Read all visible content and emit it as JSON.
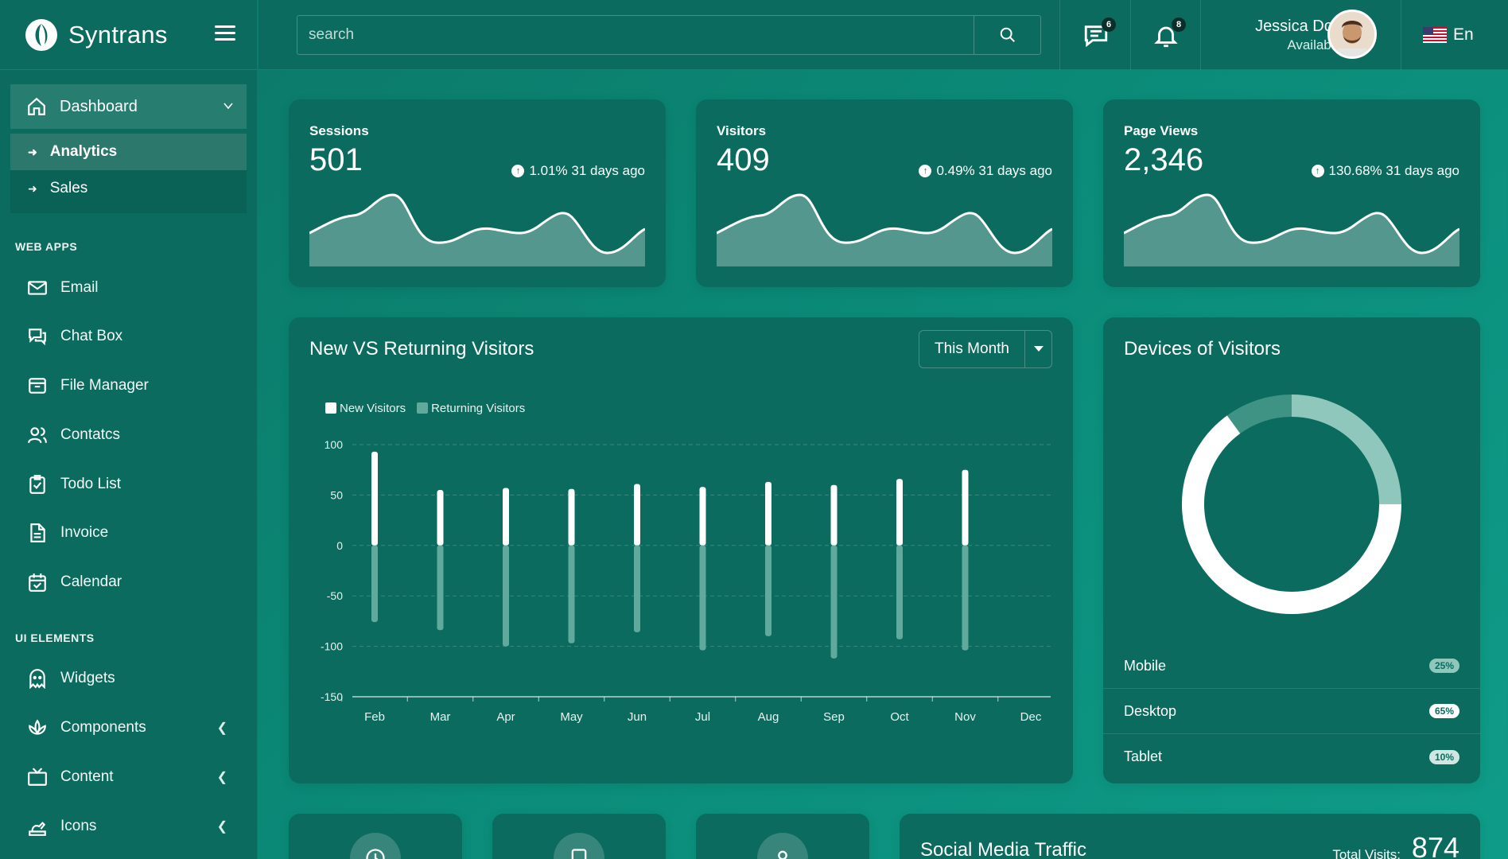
{
  "brand": {
    "name": "Syntrans"
  },
  "search": {
    "placeholder": "search"
  },
  "header": {
    "messages_count": "6",
    "notifications_count": "8",
    "user_name": "Jessica Doe",
    "user_status": "Available",
    "language": "En"
  },
  "sidebar": {
    "dashboard": "Dashboard",
    "sub_items": [
      "Analytics",
      "Sales"
    ],
    "section_web_apps": "WEB APPS",
    "web_apps": [
      "Email",
      "Chat Box",
      "File Manager",
      "Contatcs",
      "Todo List",
      "Invoice",
      "Calendar"
    ],
    "section_ui_elements": "UI ELEMENTS",
    "ui_elements": [
      "Widgets",
      "Components",
      "Content",
      "Icons"
    ]
  },
  "stats": [
    {
      "title": "Sessions",
      "value": "501",
      "change": "1.01% 31 days ago"
    },
    {
      "title": "Visitors",
      "value": "409",
      "change": "0.49% 31 days ago"
    },
    {
      "title": "Page Views",
      "value": "2,346",
      "change": "130.68% 31 days ago"
    }
  ],
  "visitors_chart": {
    "title": "New VS Returning Visitors",
    "period": "This Month"
  },
  "devices": {
    "title": "Devices of Visitors",
    "rows": [
      {
        "label": "Mobile",
        "pct": "25%"
      },
      {
        "label": "Desktop",
        "pct": "65%"
      },
      {
        "label": "Tablet",
        "pct": "10%"
      }
    ]
  },
  "social": {
    "title": "Social Media Traffic",
    "total_label": "Total Visits:",
    "total_value": "874"
  },
  "chart_data": [
    {
      "type": "bar",
      "categories": [
        "Feb",
        "Mar",
        "Apr",
        "May",
        "Jun",
        "Jul",
        "Aug",
        "Sep",
        "Oct",
        "Nov",
        "Dec"
      ],
      "series": [
        {
          "name": "New Visitors",
          "color": "#ffffff",
          "values": [
            93,
            55,
            57,
            56,
            61,
            58,
            63,
            60,
            66,
            75,
            0
          ]
        },
        {
          "name": "Returning Visitors",
          "color": "#5fa99d",
          "values": [
            -76,
            -84,
            -100,
            -97,
            -86,
            -104,
            -90,
            -112,
            -93,
            -104,
            0
          ]
        }
      ],
      "yticks": [
        100,
        50,
        0,
        -50,
        -100,
        -150
      ],
      "ylim": [
        -150,
        100
      ],
      "grid": true,
      "legend": "top-left"
    },
    {
      "type": "pie",
      "categories": [
        "Mobile",
        "Desktop",
        "Tablet"
      ],
      "values": [
        25,
        65,
        10
      ],
      "colors": [
        "#8fc7bd",
        "#ffffff",
        "#3f9385"
      ]
    }
  ]
}
